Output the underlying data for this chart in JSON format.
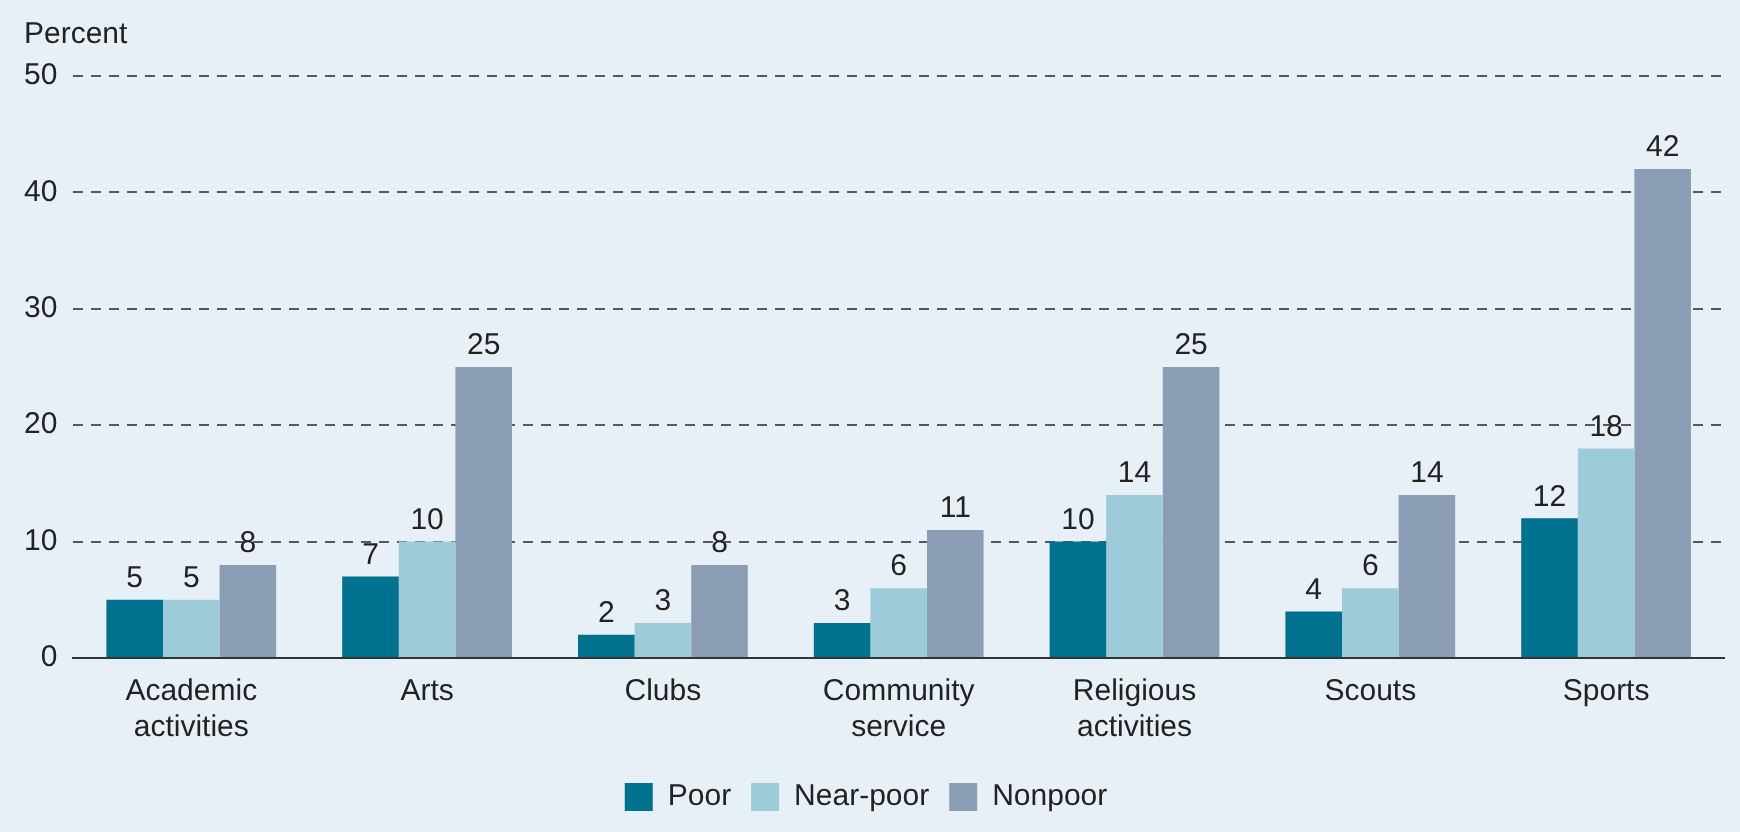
{
  "chart_data": {
    "type": "bar",
    "ylabel": "Percent",
    "categories": [
      "Academic activities",
      "Arts",
      "Clubs",
      "Community service",
      "Religious activities",
      "Scouts",
      "Sports"
    ],
    "series": [
      {
        "name": "Poor",
        "color": "#00718e",
        "values": [
          5,
          7,
          2,
          3,
          10,
          4,
          12
        ]
      },
      {
        "name": "Near-poor",
        "color": "#9ecbda",
        "values": [
          5,
          10,
          3,
          6,
          14,
          6,
          18
        ]
      },
      {
        "name": "Nonpoor",
        "color": "#8a9db5",
        "values": [
          8,
          25,
          8,
          11,
          25,
          14,
          42
        ]
      }
    ],
    "ylim": [
      0,
      50
    ],
    "yticks": [
      0,
      10,
      20,
      30,
      40,
      50
    ],
    "grid": "y",
    "legend": "bottom",
    "data_labels": true
  }
}
